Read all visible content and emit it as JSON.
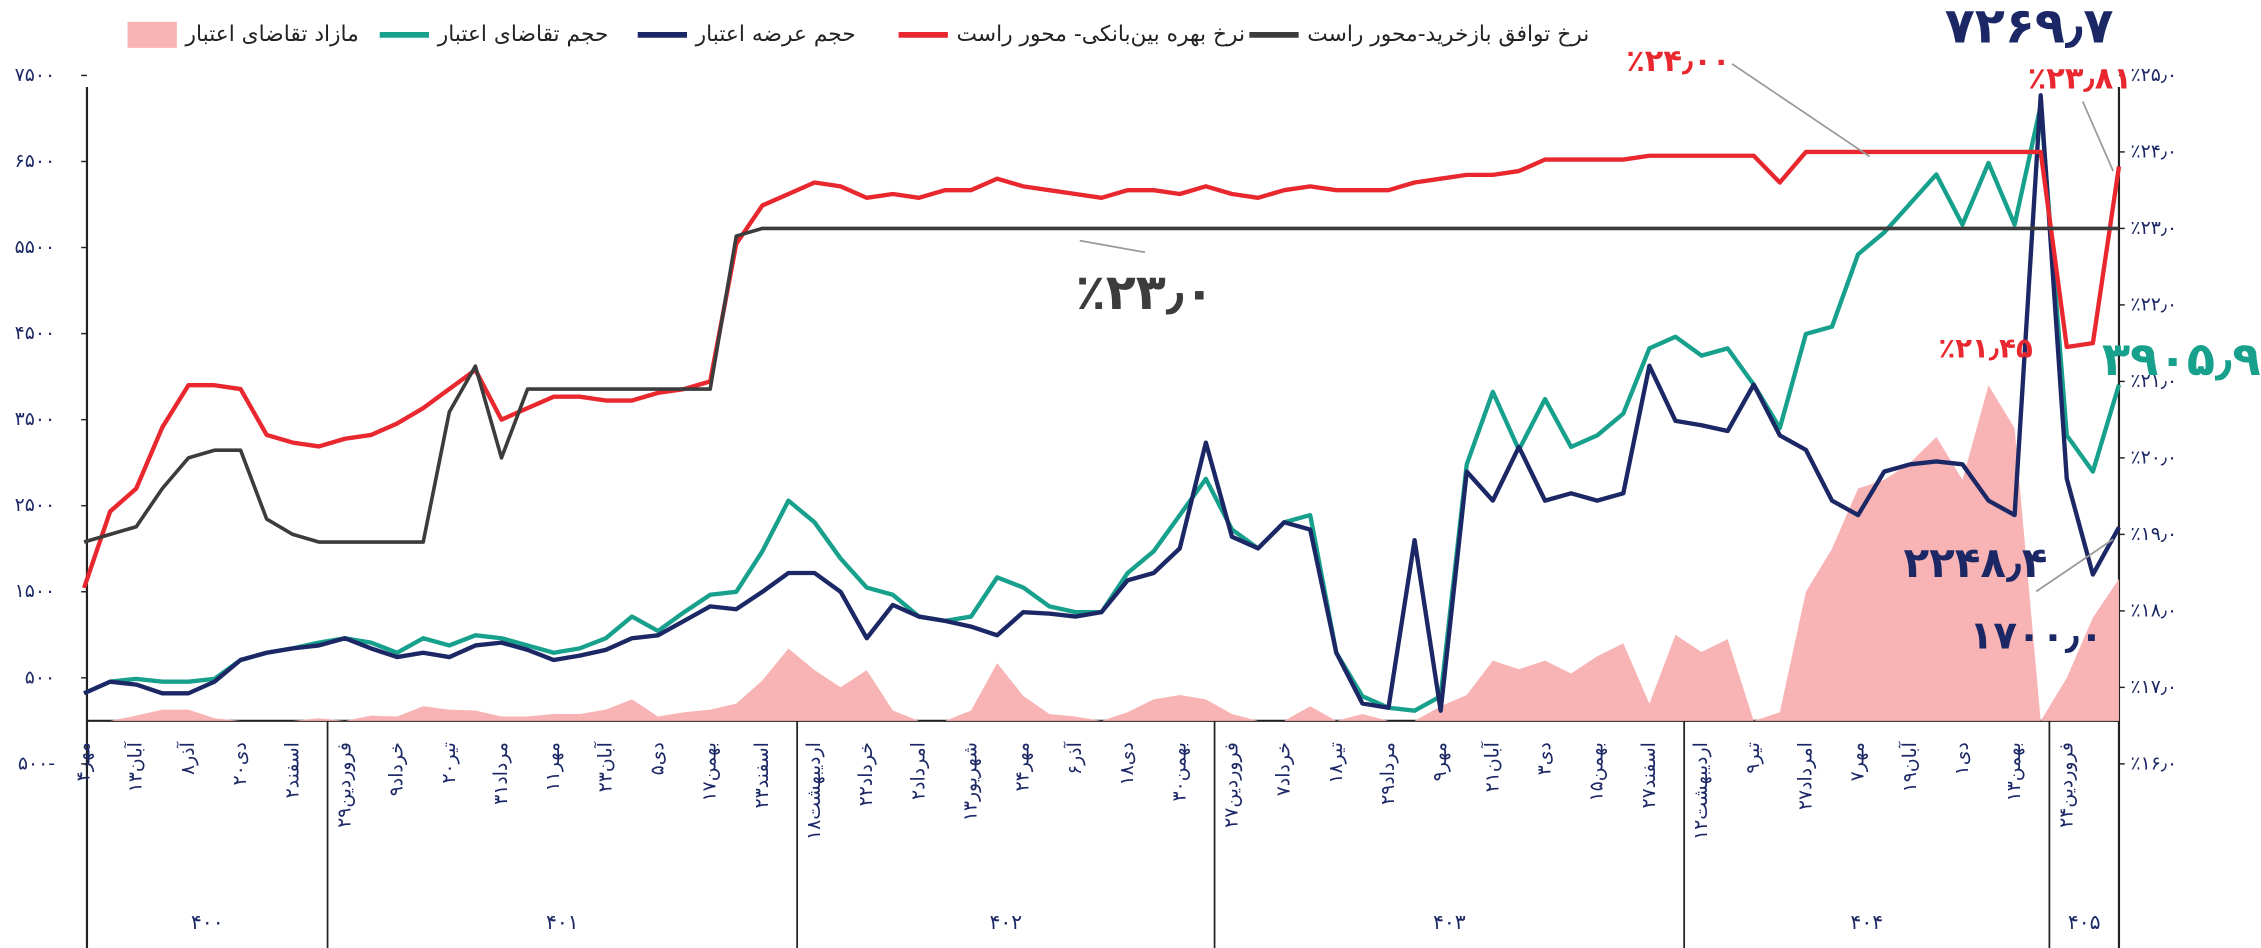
{
  "chart_data": {
    "type": "line",
    "categories": [
      "۴مهر",
      null,
      "۱۳آبان",
      null,
      "۸آذر",
      null,
      "۲۰دی",
      null,
      "۲اسفند",
      null,
      "۲۹فروردین",
      null,
      "۹خرداد",
      null,
      "۲۰تیر",
      null,
      "۳۱مرداد",
      null,
      "۱۱مهر",
      null,
      "۲۳آبان",
      null,
      "۵دی",
      null,
      "۱۷بهمن",
      null,
      "۲۳اسفند",
      null,
      "۱۸اردیبهشت",
      null,
      "۲۲خرداد",
      null,
      "۲امرداد",
      null,
      "۱۳شهریور",
      null,
      "۲۴مهر",
      null,
      "۶آذر",
      null,
      "۱۸دی",
      null,
      "۳۰بهمن",
      null,
      "۲۷فروردین",
      null,
      "۷خرداد",
      null,
      "۱۸تیر",
      null,
      "۲۹مرداد",
      null,
      "۹مهر",
      null,
      "۲۱آبان",
      null,
      "۳دی",
      null,
      "۱۵بهمن",
      null,
      "۲۷اسفند",
      null,
      "۱۲اردیبهشت",
      null,
      "۹تیر",
      null,
      "۲۷امرداد",
      null,
      "۷مهر",
      null,
      "۱۹آبان",
      null,
      "۱دی",
      null,
      "۱۳بهمن",
      null,
      "۲۴فروردین",
      null,
      null
    ],
    "category_groups": [
      "۴۰۰",
      "۴۰۰",
      "۴۰۰",
      "۴۰۰",
      "۴۰۰",
      "۴۰۰",
      "۴۰۰",
      "۴۰۰",
      "۴۰۰",
      "۴۰۰",
      "۴۰۱",
      "۴۰۱",
      "۴۰۱",
      "۴۰۱",
      "۴۰۱",
      "۴۰۱",
      "۴۰۱",
      "۴۰۱",
      "۴۰۱",
      "۴۰۱",
      "۴۰۱",
      "۴۰۱",
      "۴۰۱",
      "۴۰۱",
      "۴۰۱",
      "۴۰۱",
      "۴۰۱",
      "۴۰۱",
      "۴۰۲",
      "۴۰۲",
      "۴۰۲",
      "۴۰۲",
      "۴۰۲",
      "۴۰۲",
      "۴۰۲",
      "۴۰۲",
      "۴۰۲",
      "۴۰۲",
      "۴۰۲",
      "۴۰۲",
      "۴۰۲",
      "۴۰۲",
      "۴۰۲",
      "۴۰۲",
      "۴۰۳",
      "۴۰۳",
      "۴۰۳",
      "۴۰۳",
      "۴۰۳",
      "۴۰۳",
      "۴۰۳",
      "۴۰۳",
      "۴۰۳",
      "۴۰۳",
      "۴۰۳",
      "۴۰۳",
      "۴۰۳",
      "۴۰۳",
      "۴۰۳",
      "۴۰۳",
      "۴۰۳",
      "۴۰۳",
      "۴۰۴",
      "۴۰۴",
      "۴۰۴",
      "۴۰۴",
      "۴۰۴",
      "۴۰۴",
      "۴۰۴",
      "۴۰۴",
      "۴۰۴",
      "۴۰۴",
      "۴۰۴",
      "۴۰۴",
      "۴۰۴",
      "۴۰۴",
      "۴۰۵",
      "۴۰۵",
      "۴۰۵"
    ],
    "series": [
      {
        "name": "مازاد تقاضای اعتبار",
        "type": "area",
        "color": "#f8b4b4",
        "values": [
          0,
          0,
          60,
          130,
          130,
          30,
          0,
          0,
          0,
          30,
          0,
          60,
          50,
          170,
          130,
          120,
          50,
          50,
          80,
          80,
          130,
          250,
          50,
          100,
          130,
          200,
          470,
          840,
          590,
          390,
          590,
          120,
          0,
          0,
          120,
          670,
          290,
          80,
          50,
          0,
          100,
          250,
          300,
          250,
          80,
          0,
          0,
          170,
          0,
          80,
          0,
          0,
          170,
          300,
          700,
          600,
          700,
          550,
          750,
          900,
          200,
          1000,
          800,
          950,
          0,
          100,
          1500,
          2000,
          2700,
          2800,
          3000,
          3300,
          2800,
          3900,
          3400,
          0,
          500,
          1200,
          1650
        ]
      },
      {
        "name": "حجم تقاضای اعتبار",
        "type": "line",
        "color": "#17a08c",
        "values": [
          320,
          455,
          488,
          455,
          455,
          488,
          707,
          791,
          842,
          909,
          960,
          909,
          791,
          960,
          876,
          994,
          960,
          876,
          791,
          842,
          960,
          1212,
          1044,
          1263,
          1465,
          1499,
          1970,
          2559,
          2307,
          1886,
          1549,
          1465,
          1212,
          1162,
          1212,
          1667,
          1549,
          1330,
          1263,
          1263,
          1718,
          1970,
          2391,
          2812,
          2223,
          2004,
          2307,
          2391,
          791,
          286,
          152,
          118,
          286,
          2981,
          3823,
          3149,
          3739,
          3183,
          3317,
          3570,
          4328,
          4463,
          4244,
          4328,
          3907,
          3402,
          4496,
          4580,
          5422,
          5675,
          6012,
          6349,
          5766,
          6483,
          5766,
          7150,
          3317,
          2896,
          3905.9
        ]
      },
      {
        "name": "حجم عرضه اعتبار",
        "type": "line",
        "color": "#1c2866",
        "values": [
          320,
          455,
          421,
          320,
          320,
          455,
          707,
          791,
          842,
          876,
          960,
          842,
          741,
          791,
          741,
          876,
          909,
          825,
          707,
          758,
          825,
          960,
          994,
          1162,
          1330,
          1297,
          1499,
          1718,
          1718,
          1499,
          960,
          1347,
          1212,
          1162,
          1095,
          994,
          1263,
          1246,
          1212,
          1263,
          1633,
          1718,
          2004,
          3233,
          2139,
          2004,
          2307,
          2223,
          791,
          202,
          152,
          2100,
          118,
          2896,
          2559,
          3183,
          2559,
          2644,
          2559,
          2644,
          4126,
          3486,
          3435,
          3368,
          3907,
          3317,
          3149,
          2559,
          2391,
          2896,
          2981,
          3014,
          2981,
          2559,
          2391,
          7269.7,
          2812,
          1700,
          2248.4
        ]
      },
      {
        "name": "نرخ بهره بین‌بانکی- محور راست",
        "type": "line",
        "axis": "y2",
        "color": "#e8282e",
        "values": [
          18.3,
          19.3,
          19.6,
          20.4,
          20.95,
          20.95,
          20.9,
          20.3,
          20.2,
          20.15,
          20.25,
          20.3,
          20.45,
          20.65,
          20.9,
          21.15,
          20.5,
          20.65,
          20.8,
          20.8,
          20.75,
          20.75,
          20.85,
          20.9,
          21.0,
          22.8,
          23.3,
          23.45,
          23.6,
          23.55,
          23.4,
          23.45,
          23.4,
          23.5,
          23.5,
          23.65,
          23.55,
          23.5,
          23.45,
          23.4,
          23.5,
          23.5,
          23.45,
          23.55,
          23.45,
          23.4,
          23.5,
          23.55,
          23.5,
          23.5,
          23.5,
          23.6,
          23.65,
          23.7,
          23.7,
          23.75,
          23.9,
          23.9,
          23.9,
          23.9,
          23.95,
          23.95,
          23.95,
          23.95,
          23.95,
          23.6,
          24.0,
          24.0,
          24.0,
          24.0,
          24.0,
          24.0,
          24.0,
          24.0,
          24.0,
          24.0,
          21.45,
          21.5,
          23.81
        ]
      },
      {
        "name": "نرخ توافق بازخرید-محور راست",
        "type": "line",
        "axis": "y2",
        "color": "#3c3c3c",
        "values": [
          18.9,
          19.0,
          19.1,
          19.6,
          20.0,
          20.1,
          20.1,
          19.2,
          19.0,
          18.9,
          18.9,
          18.9,
          18.9,
          18.9,
          20.6,
          21.2,
          20.0,
          20.9,
          20.9,
          20.9,
          20.9,
          20.9,
          20.9,
          20.9,
          20.9,
          22.9,
          23.0,
          23.0,
          23.0,
          23.0,
          23.0,
          23.0,
          23.0,
          23.0,
          23.0,
          23.0,
          23.0,
          23.0,
          23.0,
          23.0,
          23.0,
          23.0,
          23.0,
          23.0,
          23.0,
          23.0,
          23.0,
          23.0,
          23.0,
          23.0,
          23.0,
          23.0,
          23.0,
          23.0,
          23.0,
          23.0,
          23.0,
          23.0,
          23.0,
          23.0,
          23.0,
          23.0,
          23.0,
          23.0,
          23.0,
          23.0,
          23.0,
          23.0,
          23.0,
          23.0,
          23.0,
          23.0,
          23.0,
          23.0,
          23.0,
          23.0,
          23.0,
          23.0,
          23.0
        ]
      }
    ],
    "ylim": [
      -500,
      7500
    ],
    "yticks": [
      {
        "value": -500,
        "label": "۵۰۰-"
      },
      {
        "value": 500,
        "label": "۵۰۰"
      },
      {
        "value": 1500,
        "label": "۱۵۰۰"
      },
      {
        "value": 2500,
        "label": "۲۵۰۰"
      },
      {
        "value": 3500,
        "label": "۳۵۰۰"
      },
      {
        "value": 4500,
        "label": "۴۵۰۰"
      },
      {
        "value": 5500,
        "label": "۵۵۰۰"
      },
      {
        "value": 6500,
        "label": "۶۵۰۰"
      },
      {
        "value": 7500,
        "label": "۷۵۰۰"
      }
    ],
    "y2lim": [
      16,
      25
    ],
    "y2ticks": [
      {
        "value": 16,
        "label": "٪۱۶٫۰"
      },
      {
        "value": 17,
        "label": "٪۱۷٫۰"
      },
      {
        "value": 18,
        "label": "٪۱۸٫۰"
      },
      {
        "value": 19,
        "label": "٪۱۹٫۰"
      },
      {
        "value": 20,
        "label": "٪۲۰٫۰"
      },
      {
        "value": 21,
        "label": "٪۲۱٫۰"
      },
      {
        "value": 22,
        "label": "٪۲۲٫۰"
      },
      {
        "value": 23,
        "label": "٪۲۳٫۰"
      },
      {
        "value": 24,
        "label": "٪۲۴٫۰"
      },
      {
        "value": 25,
        "label": "٪۲۵٫۰"
      }
    ],
    "grid": false,
    "legend": "top",
    "annotations": [
      {
        "text": "۷۲۶۹٫۷",
        "color": "#1c2866"
      },
      {
        "text": "٪۲۴٫۰۰",
        "color": "#e8282e"
      },
      {
        "text": "٪۲۳٫۸۱",
        "color": "#e8282e"
      },
      {
        "text": "٪۲۳٫۰",
        "color": "#3c3c3c"
      },
      {
        "text": "٪۲۱٫۴۵",
        "color": "#e8282e"
      },
      {
        "text": "۳۹۰۵٫۹",
        "color": "#17a08c"
      },
      {
        "text": "۲۲۴۸٫۴",
        "color": "#1c2866"
      },
      {
        "text": "۱۷۰۰٫۰",
        "color": "#1c2866"
      }
    ]
  }
}
